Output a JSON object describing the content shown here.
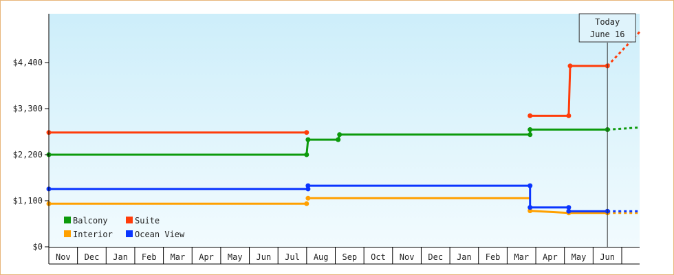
{
  "chart_data": {
    "type": "line",
    "title": "",
    "xlabel": "",
    "ylabel": "",
    "y_ticks": [
      "$0",
      "$1,100",
      "$2,200",
      "$3,300",
      "$4,400"
    ],
    "y_tick_values": [
      0,
      1100,
      2200,
      3300,
      4400
    ],
    "ylim": [
      0,
      5150
    ],
    "x_months": [
      "Nov",
      "Dec",
      "Jan",
      "Feb",
      "Mar",
      "Apr",
      "May",
      "Jun",
      "Jul",
      "Aug",
      "Sep",
      "Oct",
      "Nov",
      "Dec",
      "Jan",
      "Feb",
      "Mar",
      "Apr",
      "May",
      "Jun"
    ],
    "x_unit": "month index from start (0 = start of first Nov)",
    "xlim": [
      0,
      20.65
    ],
    "today": {
      "line1": "Today",
      "line2": "June 16",
      "x": 19.5
    },
    "legend_placement": "bottom-left",
    "grid": false,
    "background": {
      "top": "#cdeefa",
      "bottom": "#f2fbfe"
    },
    "series": [
      {
        "name": "Balcony",
        "color": "#0c9a0c",
        "points": [
          [
            0,
            2200
          ],
          [
            9.0,
            2200
          ],
          [
            9.05,
            2560
          ],
          [
            10.1,
            2560
          ],
          [
            10.15,
            2680
          ],
          [
            16.8,
            2680
          ],
          [
            16.8,
            2800
          ],
          [
            19.5,
            2800
          ]
        ],
        "markers": [
          [
            0,
            2200
          ],
          [
            9.0,
            2200
          ],
          [
            9.05,
            2560
          ],
          [
            10.1,
            2560
          ],
          [
            10.15,
            2680
          ],
          [
            16.8,
            2680
          ],
          [
            16.8,
            2800
          ],
          [
            19.5,
            2800
          ]
        ],
        "projection": [
          [
            19.5,
            2800
          ],
          [
            20.65,
            2850
          ]
        ]
      },
      {
        "name": "Suite",
        "color": "#ff3c0a",
        "segments": [
          [
            [
              0,
              2730
            ],
            [
              9.0,
              2730
            ]
          ],
          [
            [
              16.8,
              3130
            ],
            [
              18.15,
              3130
            ],
            [
              18.2,
              4320
            ],
            [
              19.5,
              4320
            ]
          ]
        ],
        "markers": [
          [
            0,
            2730
          ],
          [
            9.0,
            2730
          ],
          [
            16.8,
            3130
          ],
          [
            18.15,
            3130
          ],
          [
            18.2,
            4320
          ],
          [
            19.5,
            4320
          ]
        ],
        "projection": [
          [
            19.5,
            4320
          ],
          [
            20.65,
            5150
          ]
        ]
      },
      {
        "name": "Interior",
        "color": "#ffa000",
        "segments": [
          [
            [
              0,
              1030
            ],
            [
              9.0,
              1030
            ]
          ],
          [
            [
              9.05,
              1160
            ],
            [
              16.8,
              1160
            ]
          ],
          [
            [
              16.8,
              860
            ],
            [
              18.15,
              810
            ],
            [
              19.5,
              810
            ]
          ]
        ],
        "markers": [
          [
            0,
            1030
          ],
          [
            9.0,
            1030
          ],
          [
            9.05,
            1160
          ],
          [
            16.8,
            860
          ],
          [
            18.15,
            810
          ],
          [
            19.5,
            810
          ]
        ],
        "projection": [
          [
            19.5,
            810
          ],
          [
            20.65,
            810
          ]
        ]
      },
      {
        "name": "Ocean View",
        "color": "#0a35ff",
        "points": [
          [
            0,
            1380
          ],
          [
            9.05,
            1380
          ],
          [
            9.05,
            1460
          ],
          [
            16.8,
            1460
          ],
          [
            16.8,
            940
          ],
          [
            18.15,
            940
          ],
          [
            18.15,
            850
          ],
          [
            19.5,
            850
          ]
        ],
        "markers": [
          [
            0,
            1380
          ],
          [
            9.05,
            1380
          ],
          [
            9.05,
            1460
          ],
          [
            16.8,
            1460
          ],
          [
            16.8,
            940
          ],
          [
            18.15,
            940
          ],
          [
            18.15,
            850
          ],
          [
            19.5,
            850
          ]
        ],
        "projection": [
          [
            19.5,
            850
          ],
          [
            20.65,
            850
          ]
        ]
      }
    ]
  }
}
